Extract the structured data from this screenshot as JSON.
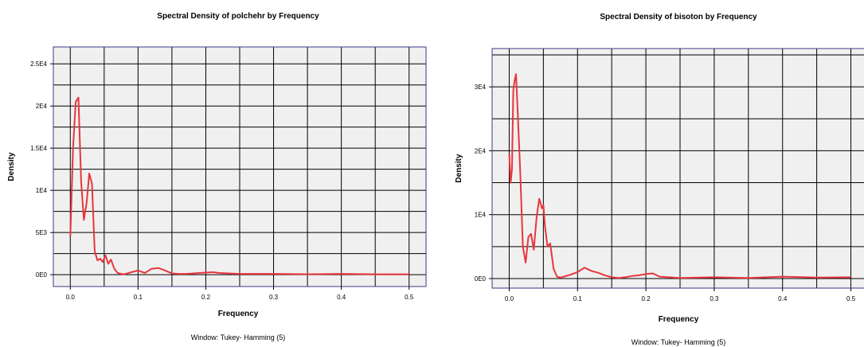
{
  "chart_data": [
    {
      "type": "line",
      "title": "Spectral Density of polchehr by Frequency",
      "xlabel": "Frequency",
      "ylabel": "Density",
      "footnote": "Window: Tukey- Hamming (5)",
      "xlim": [
        -0.025,
        0.525
      ],
      "ylim": [
        -1400,
        27000
      ],
      "x_ticks": [
        0,
        0.1,
        0.2,
        0.3,
        0.4,
        0.5
      ],
      "x_tick_labels": [
        "0.0",
        "0.1",
        "0.2",
        "0.3",
        "0.4",
        "0.5"
      ],
      "y_ticks": [
        0,
        5000,
        10000,
        15000,
        20000,
        25000
      ],
      "y_tick_labels": [
        "0E0",
        "5E3",
        "1E4",
        "1.5E4",
        "2E4",
        "2.5E4"
      ],
      "y_minor_step": 2500,
      "grid": true,
      "line_color": "#e8363c",
      "plot_bg": "#f0f0f0",
      "series": [
        {
          "x": [
            0,
            0.004,
            0.008,
            0.012,
            0.016,
            0.02,
            0.024,
            0.028,
            0.032,
            0.036,
            0.04,
            0.044,
            0.048,
            0.052,
            0.056,
            0.06,
            0.065,
            0.07,
            0.075,
            0.08,
            0.09,
            0.1,
            0.11,
            0.12,
            0.13,
            0.14,
            0.15,
            0.16,
            0.17,
            0.18,
            0.19,
            0.2,
            0.21,
            0.22,
            0.25,
            0.3,
            0.35,
            0.4,
            0.45,
            0.5
          ],
          "values": [
            4500,
            15000,
            20500,
            21000,
            11000,
            6500,
            8500,
            12000,
            10800,
            2800,
            1700,
            1900,
            1500,
            2300,
            1300,
            1800,
            700,
            200,
            100,
            50,
            300,
            500,
            200,
            700,
            800,
            500,
            150,
            100,
            100,
            150,
            200,
            250,
            300,
            200,
            100,
            100,
            50,
            100,
            50,
            50
          ]
        }
      ]
    },
    {
      "type": "line",
      "title": "Spectral Density of bisoton by Frequency",
      "xlabel": "Frequency",
      "ylabel": "Density",
      "footnote": "Window: Tukey- Hamming (5)",
      "xlim": [
        -0.025,
        0.525
      ],
      "ylim": [
        -1500,
        36000
      ],
      "x_ticks": [
        0,
        0.1,
        0.2,
        0.3,
        0.4,
        0.5
      ],
      "x_tick_labels": [
        "0.0",
        "0.1",
        "0.2",
        "0.3",
        "0.4",
        "0.5"
      ],
      "y_ticks": [
        0,
        10000,
        20000,
        30000
      ],
      "y_tick_labels": [
        "0E0",
        "1E4",
        "2E4",
        "3E4"
      ],
      "y_minor_step": 5000,
      "grid": true,
      "line_color": "#e8363c",
      "plot_bg": "#f0f0f0",
      "series": [
        {
          "x": [
            0,
            0.002,
            0.004,
            0.006,
            0.008,
            0.01,
            0.012,
            0.016,
            0.02,
            0.024,
            0.028,
            0.032,
            0.036,
            0.04,
            0.044,
            0.048,
            0.05,
            0.052,
            0.056,
            0.06,
            0.065,
            0.07,
            0.075,
            0.08,
            0.09,
            0.1,
            0.11,
            0.12,
            0.13,
            0.14,
            0.15,
            0.16,
            0.17,
            0.18,
            0.19,
            0.2,
            0.21,
            0.22,
            0.25,
            0.3,
            0.35,
            0.4,
            0.45,
            0.5
          ],
          "values": [
            19500,
            15000,
            17000,
            29500,
            31000,
            32000,
            27000,
            17000,
            5000,
            2500,
            6500,
            7000,
            4500,
            9500,
            12500,
            11000,
            11500,
            8500,
            5000,
            5500,
            1500,
            300,
            150,
            300,
            600,
            1000,
            1700,
            1200,
            900,
            500,
            200,
            100,
            200,
            400,
            500,
            700,
            800,
            300,
            100,
            200,
            100,
            300,
            150,
            200
          ]
        }
      ]
    }
  ]
}
